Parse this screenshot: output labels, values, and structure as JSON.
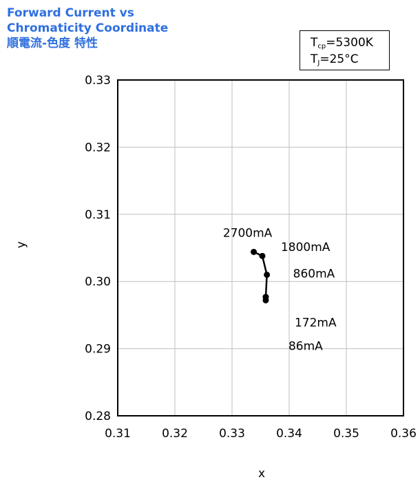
{
  "header": {
    "title_line1": "Forward Current vs",
    "title_line2": "Chromaticity Coordinate",
    "title_line3": "順電流-色度 特性"
  },
  "conditions": {
    "tcp_symbol": "T",
    "tcp_sub": "cp",
    "tcp_value": "=5300K",
    "tj_symbol": "T",
    "tj_sub": "J",
    "tj_value": "=25°C"
  },
  "chart_data": {
    "type": "line",
    "xlabel": "x",
    "ylabel": "y",
    "xlim": [
      0.31,
      0.36
    ],
    "ylim": [
      0.28,
      0.33
    ],
    "x_ticks": [
      "0.31",
      "0.32",
      "0.33",
      "0.34",
      "0.35",
      "0.36"
    ],
    "y_ticks": [
      "0.28",
      "0.29",
      "0.30",
      "0.31",
      "0.32",
      "0.33"
    ],
    "grid": true,
    "colors": {
      "line": "#000000",
      "grid": "#bfbfbf",
      "title": "#2f6fe0"
    },
    "points": [
      {
        "x": 0.3359,
        "y": 0.2972,
        "label": "86mA"
      },
      {
        "x": 0.3359,
        "y": 0.2977,
        "label": "172mA"
      },
      {
        "x": 0.3361,
        "y": 0.301,
        "label": "860mA"
      },
      {
        "x": 0.3353,
        "y": 0.3038,
        "label": "1800mA"
      },
      {
        "x": 0.3338,
        "y": 0.3044,
        "label": "2700mA"
      }
    ]
  }
}
